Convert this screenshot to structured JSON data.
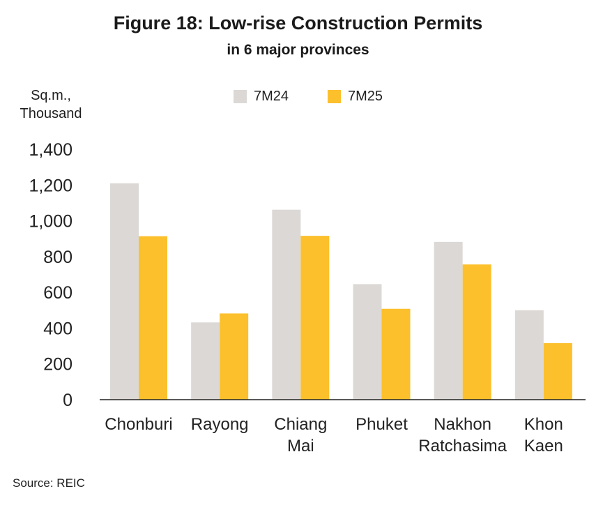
{
  "title": "Figure 18: Low-rise Construction Permits",
  "subtitle": "in 6 major provinces",
  "unit_line1": "Sq.m.,",
  "unit_line2": "Thousand",
  "source": "Source: REIC",
  "colors": {
    "7M24": "#dcd8d5",
    "7M25": "#fcc02c",
    "axis": "#222222"
  },
  "chart_data": {
    "type": "bar",
    "title": "Figure 18: Low-rise Construction Permits",
    "subtitle": "in 6 major provinces",
    "ylabel": "Sq.m., Thousand",
    "xlabel": "",
    "ylim": [
      0,
      1400
    ],
    "yticks": [
      0,
      200,
      400,
      600,
      800,
      1000,
      1200,
      1400
    ],
    "ytick_labels": [
      "0",
      "200",
      "400",
      "600",
      "800",
      "1,000",
      "1,200",
      "1,400"
    ],
    "categories": [
      [
        "Chonburi"
      ],
      [
        "Rayong"
      ],
      [
        "Chiang",
        "Mai"
      ],
      [
        "Phuket"
      ],
      [
        "Nakhon",
        "Ratchasima"
      ],
      [
        "Khon",
        "Kaen"
      ]
    ],
    "series": [
      {
        "name": "7M24",
        "values": [
          1210,
          432,
          1062,
          646,
          882,
          500
        ]
      },
      {
        "name": "7M25",
        "values": [
          914,
          482,
          916,
          508,
          756,
          316
        ]
      }
    ],
    "grid": false,
    "legend": "top-center"
  }
}
